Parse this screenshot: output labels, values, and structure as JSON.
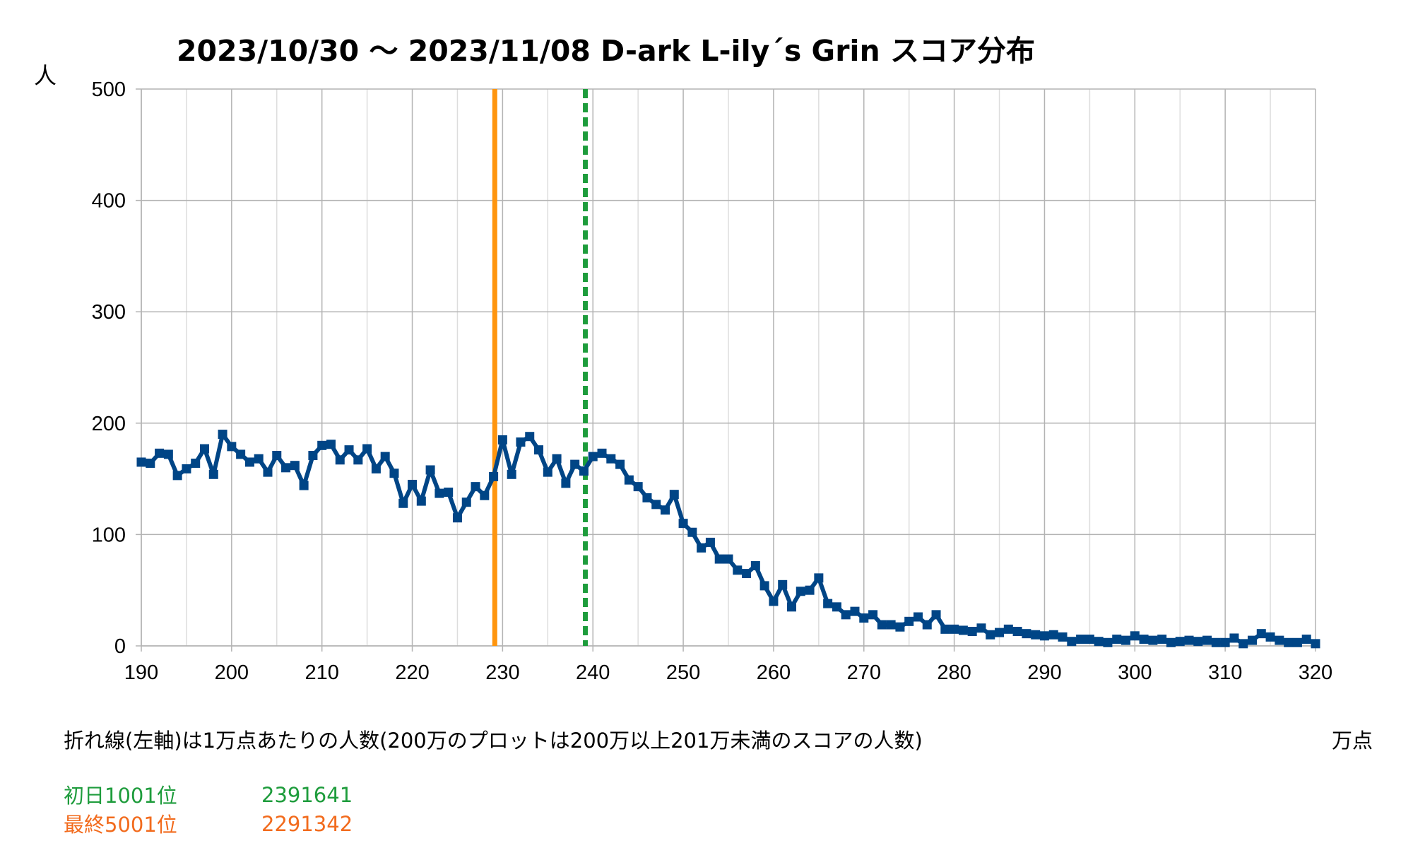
{
  "page": {
    "title": "2023/10/30 〜 2023/11/08 D-ark L-ily´s Grin スコア分布",
    "note": "折れ線(左軸)は1万点あたりの人数(200万のプロットは200万以上201万未満のスコアの人数)",
    "markers": [
      {
        "label": "初日1001位",
        "value": "2391641",
        "color": "#1e9c3c"
      },
      {
        "label": "最終5001位",
        "value": "2291342",
        "color": "#f26b1d"
      }
    ]
  },
  "chart_data": {
    "type": "line",
    "title": "2023/10/30 〜 2023/11/08 D-ark L-ily´s Grin スコア分布",
    "xlabel": "万点",
    "ylabel": "人",
    "xlim": [
      190,
      320
    ],
    "ylim": [
      0,
      500
    ],
    "xticks": [
      190,
      200,
      210,
      220,
      230,
      240,
      250,
      260,
      270,
      280,
      290,
      300,
      310,
      320
    ],
    "yticks": [
      0,
      100,
      200,
      300,
      400,
      500
    ],
    "grid": true,
    "series": [
      {
        "color": "#004586",
        "x": [
          190,
          191,
          192,
          193,
          194,
          195,
          196,
          197,
          198,
          199,
          200,
          201,
          202,
          203,
          204,
          205,
          206,
          207,
          208,
          209,
          210,
          211,
          212,
          213,
          214,
          215,
          216,
          217,
          218,
          219,
          220,
          221,
          222,
          223,
          224,
          225,
          226,
          227,
          228,
          229,
          230,
          231,
          232,
          233,
          234,
          235,
          236,
          237,
          238,
          239,
          240,
          241,
          242,
          243,
          244,
          245,
          246,
          247,
          248,
          249,
          250,
          251,
          252,
          253,
          254,
          255,
          256,
          257,
          258,
          259,
          260,
          261,
          262,
          263,
          264,
          265,
          266,
          267,
          268,
          269,
          270,
          271,
          272,
          273,
          274,
          275,
          276,
          277,
          278,
          279,
          280,
          281,
          282,
          283,
          284,
          285,
          286,
          287,
          288,
          289,
          290,
          291,
          292,
          293,
          294,
          295,
          296,
          297,
          298,
          299,
          300,
          301,
          302,
          303,
          304,
          305,
          306,
          307,
          308,
          309,
          310,
          311,
          312,
          313,
          314,
          315,
          316,
          317,
          318,
          319,
          320
        ],
        "values": [
          165,
          164,
          173,
          172,
          153,
          159,
          164,
          177,
          154,
          190,
          179,
          172,
          165,
          168,
          156,
          171,
          160,
          162,
          144,
          171,
          180,
          181,
          167,
          176,
          167,
          177,
          159,
          170,
          155,
          128,
          145,
          130,
          158,
          137,
          138,
          115,
          129,
          143,
          135,
          152,
          185,
          154,
          183,
          188,
          176,
          156,
          168,
          146,
          163,
          157,
          170,
          173,
          168,
          163,
          149,
          143,
          133,
          127,
          122,
          136,
          110,
          102,
          88,
          93,
          78,
          78,
          68,
          65,
          72,
          54,
          40,
          55,
          35,
          49,
          50,
          61,
          38,
          35,
          28,
          31,
          25,
          28,
          19,
          19,
          17,
          22,
          26,
          19,
          28,
          15,
          15,
          14,
          13,
          16,
          10,
          12,
          15,
          13,
          11,
          10,
          9,
          10,
          8,
          4,
          6,
          6,
          4,
          3,
          6,
          5,
          9,
          6,
          5,
          6,
          3,
          4,
          5,
          4,
          5,
          3,
          3,
          7,
          2,
          5,
          11,
          8,
          5,
          3,
          3,
          6,
          2
        ]
      }
    ],
    "vlines": [
      {
        "x": 239.1641,
        "color": "#1e9c3c",
        "style": "dashed"
      },
      {
        "x": 229.1342,
        "color": "#ff950e",
        "style": "solid"
      }
    ]
  }
}
